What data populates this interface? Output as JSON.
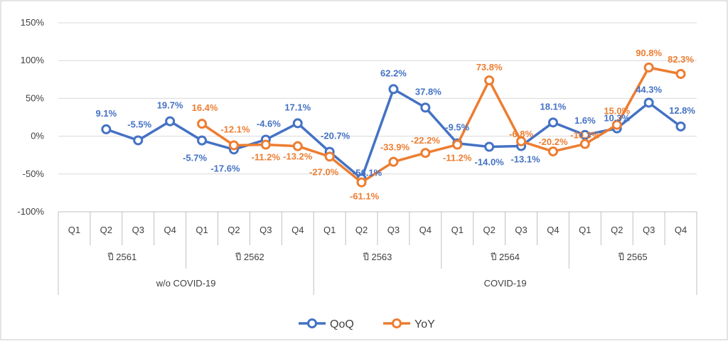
{
  "chart_data": {
    "type": "line",
    "x": [
      "Q1",
      "Q2",
      "Q3",
      "Q4",
      "Q1",
      "Q2",
      "Q3",
      "Q4",
      "Q1",
      "Q2",
      "Q3",
      "Q4",
      "Q1",
      "Q2",
      "Q3",
      "Q4",
      "Q1",
      "Q2",
      "Q3",
      "Q4"
    ],
    "years": [
      "ปี 2561",
      "ปี 2562",
      "ปี 2563",
      "ปี 2564",
      "ปี 2565"
    ],
    "periods": [
      {
        "label": "w/o COVID-19",
        "quarters": 8
      },
      {
        "label": "COVID-19",
        "quarters": 12
      }
    ],
    "ylim": [
      -100,
      150
    ],
    "yticks": [
      -100,
      -50,
      0,
      50,
      100,
      150
    ],
    "ytick_labels": [
      "-100%",
      "-50%",
      "0%",
      "50%",
      "100%",
      "150%"
    ],
    "grid": true,
    "legend_position": "bottom",
    "series": [
      {
        "name": "QoQ",
        "color": "#4472c4",
        "values": [
          null,
          9.1,
          -5.5,
          19.7,
          -5.7,
          -17.6,
          -4.6,
          17.1,
          -20.7,
          -56.1,
          62.2,
          37.8,
          -9.5,
          -14.0,
          -13.1,
          18.1,
          1.6,
          10.3,
          44.3,
          12.8
        ],
        "labels": [
          null,
          "9.1%",
          "-5.5%",
          "19.7%",
          "-5.7%",
          "-17.6%",
          "-4.6%",
          "17.1%",
          "-20.7%",
          "-56.1%",
          "62.2%",
          "37.8%",
          "-9.5%",
          "-14.0%",
          "-13.1%",
          "18.1%",
          "1.6%",
          "10.3%",
          "44.3%",
          "12.8%"
        ]
      },
      {
        "name": "YoY",
        "color": "#ed7d31",
        "values": [
          null,
          null,
          null,
          null,
          16.4,
          -12.1,
          -11.2,
          -13.2,
          -27.0,
          -61.1,
          -33.9,
          -22.2,
          -11.2,
          73.8,
          -6.8,
          -20.2,
          -10.3,
          15.0,
          90.8,
          82.3
        ],
        "labels": [
          null,
          null,
          null,
          null,
          "16.4%",
          "-12.1%",
          "-11.2%",
          "-13.2%",
          "-27.0%",
          "-61.1%",
          "-33.9%",
          "-22.2%",
          "-11.2%",
          "73.8%",
          "-6.8%",
          "-20.2%",
          "-10.3%",
          "15.0%",
          "90.8%",
          "82.3%"
        ]
      }
    ]
  }
}
